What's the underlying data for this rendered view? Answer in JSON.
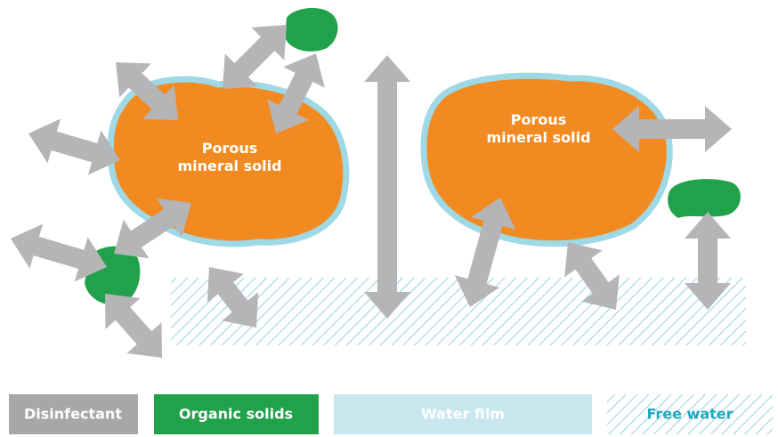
{
  "solids": [
    {
      "label_lines": [
        "Porous",
        "mineral solid"
      ]
    },
    {
      "label_lines": [
        "Porous",
        "mineral solid"
      ]
    }
  ],
  "legend": [
    "Disinfectant",
    "Organic solids",
    "Water film",
    "Free water"
  ]
}
